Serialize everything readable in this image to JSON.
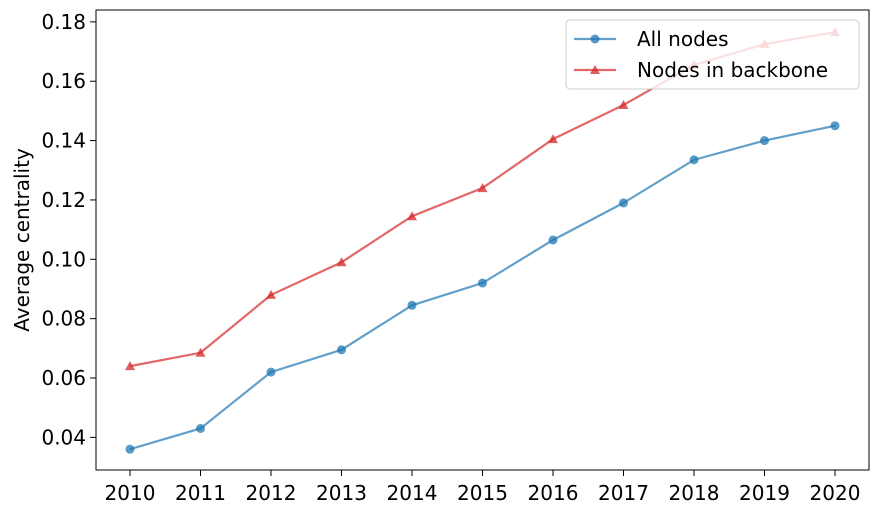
{
  "chart_data": {
    "type": "line",
    "title": "",
    "xlabel": "",
    "ylabel": "Average centrality",
    "categories": [
      "2010",
      "2011",
      "2012",
      "2013",
      "2014",
      "2015",
      "2016",
      "2017",
      "2018",
      "2019",
      "2020"
    ],
    "ylim": [
      0.029,
      0.184
    ],
    "yticks": [
      "0.04",
      "0.06",
      "0.08",
      "0.10",
      "0.12",
      "0.14",
      "0.16",
      "0.18"
    ],
    "grid": false,
    "legend_position": "top-right",
    "series": [
      {
        "name": "All nodes",
        "color": "#1f77b4",
        "marker": "circle",
        "values": [
          0.036,
          0.043,
          0.062,
          0.0695,
          0.0845,
          0.092,
          0.1065,
          0.119,
          0.1335,
          0.14,
          0.145
        ]
      },
      {
        "name": "Nodes in backbone",
        "color": "#d62728",
        "marker": "triangle",
        "values": [
          0.064,
          0.0685,
          0.088,
          0.099,
          0.1145,
          0.124,
          0.1405,
          0.152,
          0.1655,
          0.1725,
          0.1765
        ]
      }
    ]
  }
}
